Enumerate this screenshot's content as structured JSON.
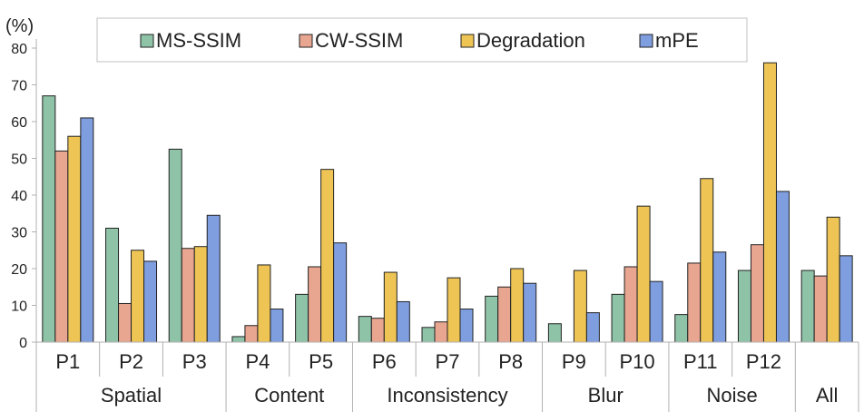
{
  "chart_data": {
    "type": "bar",
    "unit_label": "(%)",
    "ylim": [
      0,
      80
    ],
    "yticks": [
      0,
      10,
      20,
      30,
      40,
      50,
      60,
      70,
      80
    ],
    "grid": false,
    "legend_position": "top",
    "categories": [
      "P1",
      "P2",
      "P3",
      "P4",
      "P5",
      "P6",
      "P7",
      "P8",
      "P9",
      "P10",
      "P11",
      "P12",
      "All"
    ],
    "groups": [
      {
        "name": "Spatial",
        "categories": [
          "P1",
          "P2",
          "P3"
        ]
      },
      {
        "name": "Content",
        "categories": [
          "P4",
          "P5"
        ]
      },
      {
        "name": "Inconsistency",
        "categories": [
          "P6",
          "P7",
          "P8"
        ]
      },
      {
        "name": "Blur",
        "categories": [
          "P9",
          "P10"
        ]
      },
      {
        "name": "Noise",
        "categories": [
          "P11",
          "P12"
        ]
      },
      {
        "name": "All",
        "categories": [
          "All"
        ]
      }
    ],
    "series": [
      {
        "name": "MS-SSIM",
        "color": "#8fc3a8",
        "values": [
          67,
          31,
          52.5,
          1.5,
          13,
          7,
          4,
          12.5,
          5,
          13,
          7.5,
          19.5,
          19.5
        ]
      },
      {
        "name": "CW-SSIM",
        "color": "#e8a590",
        "values": [
          52,
          10.5,
          25.5,
          4.5,
          20.5,
          6.5,
          5.5,
          15,
          0,
          20.5,
          21.5,
          26.5,
          18
        ]
      },
      {
        "name": "Degradation",
        "color": "#eec555",
        "values": [
          56,
          25,
          26,
          21,
          47,
          19,
          17.5,
          20,
          19.5,
          37,
          44.5,
          76,
          34
        ]
      },
      {
        "name": "mPE",
        "color": "#7f9ee0",
        "values": [
          61,
          22,
          34.5,
          9,
          27,
          11,
          9,
          16,
          8,
          16.5,
          24.5,
          41,
          23.5
        ]
      }
    ]
  }
}
